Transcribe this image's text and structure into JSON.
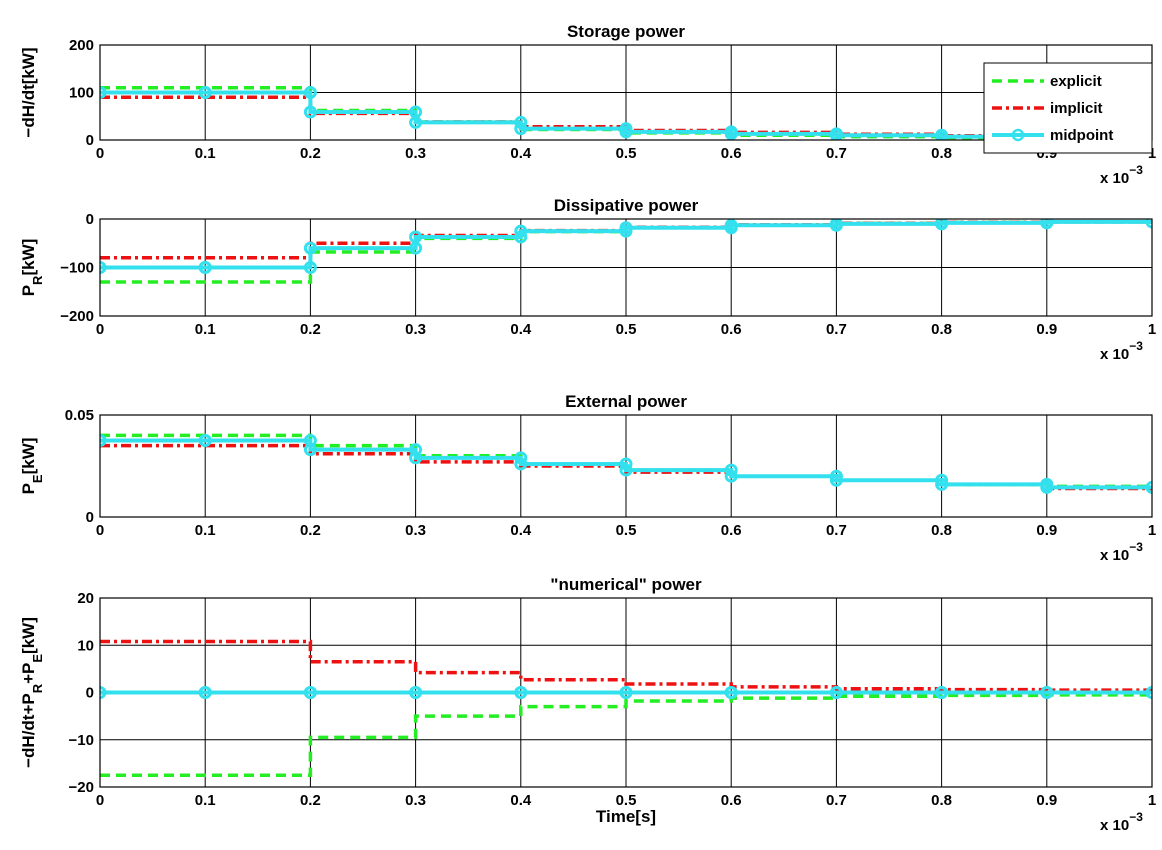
{
  "figure": {
    "exponent_label_base": "x 10",
    "exponent_label_power": "−3",
    "xlabel": "Time[s]"
  },
  "series_styles": [
    {
      "name": "explicit",
      "color": "#22ee22",
      "dash": "10,6",
      "width": 3.5,
      "marker": false
    },
    {
      "name": "implicit",
      "color": "#ee1111",
      "dash": "10,4,3,4",
      "width": 3.5,
      "marker": false
    },
    {
      "name": "midpoint",
      "color": "#33e0ee",
      "dash": "",
      "width": 4,
      "marker": true
    }
  ],
  "chart_data": [
    {
      "type": "line",
      "title": "Storage power",
      "ylabel": "−dH/dt[kW]",
      "xticks": [
        "0",
        "0.1",
        "0.2",
        "0.3",
        "0.4",
        "0.5",
        "0.6",
        "0.7",
        "0.8",
        "0.9",
        "1"
      ],
      "yticks": [
        "0",
        "100",
        "200"
      ],
      "xlim": [
        0,
        1
      ],
      "ylim": [
        0,
        200
      ],
      "grid": true,
      "legend": "top-right",
      "x": [
        0,
        0.1,
        0.2,
        0.3,
        0.4,
        0.5,
        0.6,
        0.7,
        0.8,
        0.9
      ],
      "series": [
        {
          "name": "explicit",
          "values": [
            110,
            110,
            62,
            38,
            22,
            15,
            10,
            7,
            5,
            4
          ]
        },
        {
          "name": "implicit",
          "values": [
            90,
            90,
            56,
            38,
            28,
            20,
            16,
            12,
            9,
            8
          ]
        },
        {
          "name": "midpoint",
          "values": [
            100,
            100,
            59,
            37,
            24,
            17,
            13,
            10,
            7,
            6
          ]
        }
      ]
    },
    {
      "type": "line",
      "title": "Dissipative power",
      "ylabel": "P_R[kW]",
      "xticks": [
        "0",
        "0.1",
        "0.2",
        "0.3",
        "0.4",
        "0.5",
        "0.6",
        "0.7",
        "0.8",
        "0.9",
        "1"
      ],
      "yticks": [
        "−200",
        "−100",
        "0"
      ],
      "xlim": [
        0,
        1
      ],
      "ylim": [
        -200,
        0
      ],
      "grid": true,
      "x": [
        0,
        0.1,
        0.2,
        0.3,
        0.4,
        0.5,
        0.6,
        0.7,
        0.8,
        0.9
      ],
      "series": [
        {
          "name": "explicit",
          "values": [
            -130,
            -130,
            -68,
            -40,
            -26,
            -18,
            -13,
            -9,
            -7,
            -6
          ]
        },
        {
          "name": "implicit",
          "values": [
            -80,
            -80,
            -50,
            -34,
            -24,
            -17,
            -12,
            -9,
            -7,
            -6
          ]
        },
        {
          "name": "midpoint",
          "values": [
            -100,
            -100,
            -60,
            -37,
            -25,
            -18,
            -13,
            -10,
            -8,
            -6
          ]
        }
      ]
    },
    {
      "type": "line",
      "title": "External power",
      "ylabel": "P_E[kW]",
      "xticks": [
        "0",
        "0.1",
        "0.2",
        "0.3",
        "0.4",
        "0.5",
        "0.6",
        "0.7",
        "0.8",
        "0.9",
        "1"
      ],
      "yticks": [
        "0",
        "0.05"
      ],
      "xlim": [
        0,
        1
      ],
      "ylim": [
        0,
        0.05
      ],
      "grid": true,
      "x": [
        0,
        0.1,
        0.2,
        0.3,
        0.4,
        0.5,
        0.6,
        0.7,
        0.8,
        0.9
      ],
      "series": [
        {
          "name": "explicit",
          "values": [
            0.04,
            0.04,
            0.035,
            0.03,
            0.026,
            0.023,
            0.02,
            0.018,
            0.016,
            0.015
          ]
        },
        {
          "name": "implicit",
          "values": [
            0.035,
            0.035,
            0.031,
            0.027,
            0.025,
            0.022,
            0.02,
            0.018,
            0.016,
            0.014
          ]
        },
        {
          "name": "midpoint",
          "values": [
            0.0375,
            0.0375,
            0.033,
            0.029,
            0.026,
            0.023,
            0.02,
            0.018,
            0.016,
            0.0145
          ]
        }
      ]
    },
    {
      "type": "line",
      "title": "\"numerical\" power",
      "ylabel": "−dH/dt+P_R+P_E[kW]",
      "xticks": [
        "0",
        "0.1",
        "0.2",
        "0.3",
        "0.4",
        "0.5",
        "0.6",
        "0.7",
        "0.8",
        "0.9",
        "1"
      ],
      "yticks": [
        "−20",
        "−10",
        "0",
        "10",
        "20"
      ],
      "xlim": [
        0,
        1
      ],
      "ylim": [
        -20,
        20
      ],
      "grid": true,
      "x": [
        0,
        0.1,
        0.2,
        0.3,
        0.4,
        0.5,
        0.6,
        0.7,
        0.8,
        0.9
      ],
      "series": [
        {
          "name": "explicit",
          "values": [
            -17.5,
            -17.5,
            -9.5,
            -5,
            -3,
            -1.8,
            -1.2,
            -0.8,
            -0.6,
            -0.5
          ]
        },
        {
          "name": "implicit",
          "values": [
            10.8,
            10.8,
            6.5,
            4.2,
            2.7,
            1.8,
            1.2,
            0.8,
            0.6,
            0.5
          ]
        },
        {
          "name": "midpoint",
          "values": [
            0,
            0,
            0,
            0,
            0,
            0,
            0,
            0,
            0,
            0
          ]
        }
      ]
    }
  ]
}
